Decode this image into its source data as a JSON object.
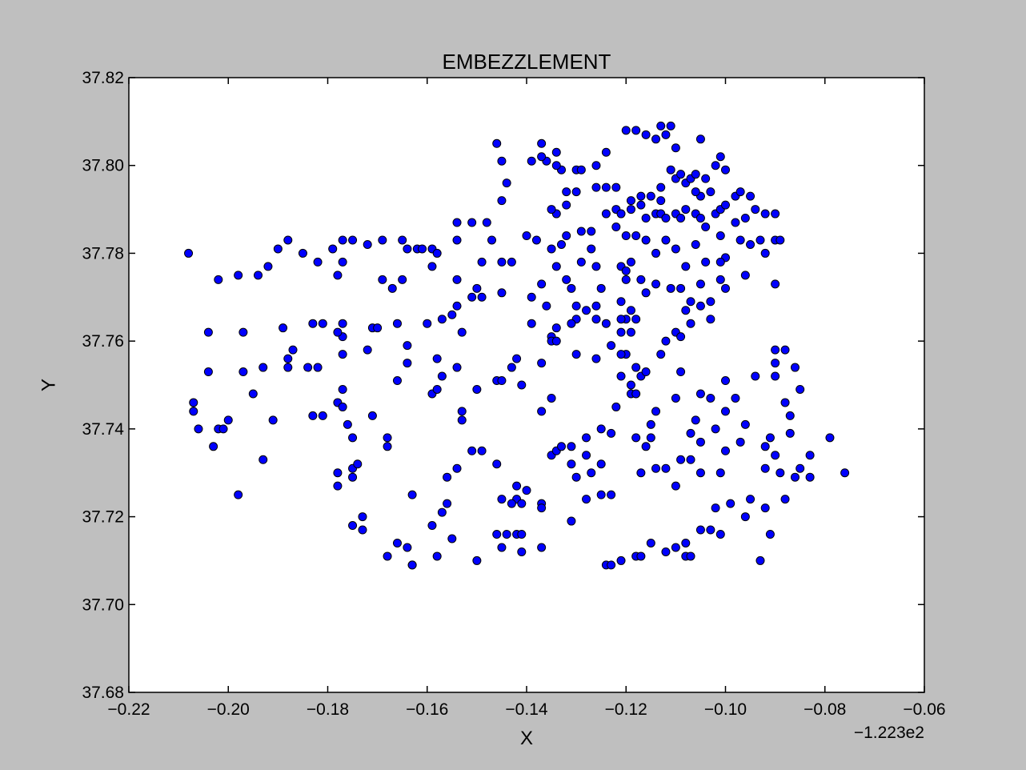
{
  "chart_data": {
    "type": "scatter",
    "title": "EMBEZZLEMENT",
    "x_label": "X",
    "y_label": "Y",
    "x_offset_label": "−1.223e2",
    "color": "#0000ff",
    "edge_color": "#000000",
    "xlim": [
      -0.22,
      -0.06
    ],
    "ylim": [
      37.68,
      37.82
    ],
    "xticks": [
      {
        "value": -0.22,
        "label": "−0.22"
      },
      {
        "value": -0.2,
        "label": "−0.20"
      },
      {
        "value": -0.18,
        "label": "−0.18"
      },
      {
        "value": -0.16,
        "label": "−0.16"
      },
      {
        "value": -0.14,
        "label": "−0.14"
      },
      {
        "value": -0.12,
        "label": "−0.12"
      },
      {
        "value": -0.1,
        "label": "−0.10"
      },
      {
        "value": -0.08,
        "label": "−0.08"
      },
      {
        "value": -0.06,
        "label": "−0.06"
      }
    ],
    "yticks": [
      37.68,
      {
        "value": 37.7,
        "label": "37.70"
      },
      37.72,
      37.74,
      37.76,
      37.78,
      {
        "value": 37.8,
        "label": "37.80"
      },
      37.82
    ],
    "x": [
      -0.208,
      -0.202,
      -0.198,
      -0.194,
      -0.192,
      -0.19,
      -0.188,
      -0.185,
      -0.182,
      -0.179,
      -0.177,
      -0.175,
      -0.177,
      -0.178,
      -0.172,
      -0.169,
      -0.165,
      -0.164,
      -0.162,
      -0.161,
      -0.159,
      -0.158,
      -0.169,
      -0.167,
      -0.165,
      -0.159,
      -0.154,
      -0.154,
      -0.151,
      -0.148,
      -0.147,
      -0.149,
      -0.154,
      -0.15,
      -0.151,
      -0.149,
      -0.154,
      -0.155,
      -0.157,
      -0.16,
      -0.153,
      -0.204,
      -0.197,
      -0.189,
      -0.183,
      -0.181,
      -0.177,
      -0.171,
      -0.17,
      -0.166,
      -0.172,
      -0.177,
      -0.178,
      -0.177,
      -0.187,
      -0.188,
      -0.188,
      -0.184,
      -0.182,
      -0.193,
      -0.197,
      -0.204,
      -0.195,
      -0.207,
      -0.207,
      -0.206,
      -0.202,
      -0.201,
      -0.2,
      -0.203,
      -0.198,
      -0.193,
      -0.191,
      -0.183,
      -0.181,
      -0.178,
      -0.177,
      -0.177,
      -0.176,
      -0.175,
      -0.171,
      -0.168,
      -0.168,
      -0.166,
      -0.164,
      -0.164,
      -0.159,
      -0.158,
      -0.157,
      -0.154,
      -0.158,
      -0.153,
      -0.153,
      -0.15,
      -0.146,
      -0.145,
      -0.141,
      -0.139,
      -0.142,
      -0.143,
      -0.137,
      -0.135,
      -0.137,
      -0.178,
      -0.178,
      -0.175,
      -0.175,
      -0.174,
      -0.175,
      -0.173,
      -0.173,
      -0.168,
      -0.166,
      -0.164,
      -0.163,
      -0.163,
      -0.163,
      -0.159,
      -0.158,
      -0.157,
      -0.156,
      -0.155,
      -0.156,
      -0.154,
      -0.151,
      -0.149,
      -0.15,
      -0.146,
      -0.145,
      -0.142,
      -0.14,
      -0.142,
      -0.143,
      -0.141,
      -0.137,
      -0.137,
      -0.146,
      -0.144,
      -0.145,
      -0.142,
      -0.141,
      -0.141,
      -0.137,
      -0.135,
      -0.134,
      -0.133,
      -0.131,
      -0.131,
      -0.13,
      -0.131,
      -0.127,
      -0.128,
      -0.128,
      -0.125,
      -0.125,
      -0.123,
      -0.128,
      -0.125,
      -0.123,
      -0.124,
      -0.123,
      -0.121,
      -0.118,
      -0.117,
      -0.115,
      -0.112,
      -0.11,
      -0.108,
      -0.107,
      -0.108,
      -0.105,
      -0.103,
      -0.101,
      -0.093,
      -0.091,
      -0.092,
      -0.096,
      -0.099,
      -0.095,
      -0.102,
      -0.088,
      -0.076,
      -0.079,
      -0.083,
      -0.083,
      -0.085,
      -0.086,
      -0.089,
      -0.092,
      -0.09,
      -0.092,
      -0.091,
      -0.087,
      -0.088,
      -0.087,
      -0.085,
      -0.086,
      -0.09,
      -0.094,
      -0.09,
      -0.09,
      -0.088,
      -0.1,
      -0.098,
      -0.096,
      -0.097,
      -0.1,
      -0.101,
      -0.105,
      -0.109,
      -0.11,
      -0.107,
      -0.105,
      -0.107,
      -0.106,
      -0.102,
      -0.1,
      -0.103,
      -0.105,
      -0.109,
      -0.11,
      -0.114,
      -0.115,
      -0.118,
      -0.115,
      -0.116,
      -0.114,
      -0.112,
      -0.117,
      -0.122,
      -0.121,
      -0.119,
      -0.118,
      -0.119,
      -0.117,
      -0.116,
      -0.118,
      -0.12,
      -0.121,
      -0.123,
      -0.121,
      -0.119,
      -0.118,
      -0.12,
      -0.121,
      -0.119,
      -0.121,
      -0.124,
      -0.126,
      -0.13,
      -0.131,
      -0.134,
      -0.135,
      -0.135,
      -0.134,
      -0.13,
      -0.126,
      -0.13,
      -0.128,
      -0.126,
      -0.131,
      -0.132,
      -0.134,
      -0.137,
      -0.136,
      -0.139,
      -0.143,
      -0.145,
      -0.145,
      -0.14,
      -0.138,
      -0.135,
      -0.133,
      -0.132,
      -0.129,
      -0.127,
      -0.127,
      -0.129,
      -0.126,
      -0.125,
      -0.121,
      -0.12,
      -0.119,
      -0.12,
      -0.117,
      -0.116,
      -0.114,
      -0.111,
      -0.109,
      -0.108,
      -0.107,
      -0.11,
      -0.112,
      -0.113,
      -0.109,
      -0.107,
      -0.105,
      -0.103,
      -0.103,
      -0.105,
      -0.101,
      -0.1,
      -0.096,
      -0.09,
      -0.092,
      -0.093,
      -0.09,
      -0.089,
      -0.095,
      -0.097,
      -0.1,
      -0.101,
      -0.104,
      -0.106,
      -0.108,
      -0.11,
      -0.112,
      -0.114,
      -0.116,
      -0.118,
      -0.12,
      -0.122,
      -0.124,
      -0.122,
      -0.121,
      -0.119,
      -0.117,
      -0.116,
      -0.114,
      -0.113,
      -0.112,
      -0.11,
      -0.109,
      -0.108,
      -0.106,
      -0.105,
      -0.104,
      -0.102,
      -0.101,
      -0.1,
      -0.098,
      -0.097,
      -0.095,
      -0.094,
      -0.092,
      -0.09,
      -0.096,
      -0.098,
      -0.101,
      -0.103,
      -0.105,
      -0.106,
      -0.108,
      -0.11,
      -0.111,
      -0.109,
      -0.107,
      -0.106,
      -0.104,
      -0.102,
      -0.101,
      -0.1,
      -0.105,
      -0.113,
      -0.115,
      -0.113,
      -0.117,
      -0.119,
      -0.122,
      -0.124,
      -0.126,
      -0.13,
      -0.129,
      -0.133,
      -0.134,
      -0.136,
      -0.137,
      -0.139,
      -0.134,
      -0.137,
      -0.146,
      -0.145,
      -0.144,
      -0.145,
      -0.132,
      -0.13,
      -0.126,
      -0.124,
      -0.134,
      -0.132,
      -0.12,
      -0.118,
      -0.116,
      -0.113,
      -0.112,
      -0.111,
      -0.11,
      -0.114,
      -0.135
    ],
    "values": [
      37.78,
      37.774,
      37.775,
      37.775,
      37.777,
      37.781,
      37.783,
      37.78,
      37.778,
      37.781,
      37.783,
      37.783,
      37.778,
      37.775,
      37.782,
      37.783,
      37.783,
      37.781,
      37.781,
      37.781,
      37.781,
      37.78,
      37.774,
      37.772,
      37.774,
      37.777,
      37.783,
      37.787,
      37.787,
      37.787,
      37.783,
      37.778,
      37.774,
      37.772,
      37.77,
      37.77,
      37.768,
      37.766,
      37.765,
      37.764,
      37.762,
      37.762,
      37.762,
      37.763,
      37.764,
      37.764,
      37.764,
      37.763,
      37.763,
      37.764,
      37.758,
      37.761,
      37.762,
      37.757,
      37.758,
      37.756,
      37.754,
      37.754,
      37.754,
      37.754,
      37.753,
      37.753,
      37.748,
      37.746,
      37.744,
      37.74,
      37.74,
      37.74,
      37.742,
      37.736,
      37.725,
      37.733,
      37.742,
      37.743,
      37.743,
      37.746,
      37.749,
      37.745,
      37.741,
      37.738,
      37.743,
      37.738,
      37.736,
      37.751,
      37.759,
      37.755,
      37.748,
      37.749,
      37.752,
      37.754,
      37.756,
      37.744,
      37.742,
      37.749,
      37.751,
      37.751,
      37.75,
      37.764,
      37.756,
      37.754,
      37.755,
      37.747,
      37.744,
      37.73,
      37.727,
      37.729,
      37.731,
      37.732,
      37.718,
      37.72,
      37.717,
      37.711,
      37.714,
      37.713,
      37.709,
      37.709,
      37.725,
      37.718,
      37.711,
      37.721,
      37.723,
      37.715,
      37.729,
      37.731,
      37.735,
      37.735,
      37.71,
      37.732,
      37.724,
      37.727,
      37.726,
      37.724,
      37.723,
      37.723,
      37.723,
      37.722,
      37.716,
      37.716,
      37.713,
      37.716,
      37.716,
      37.712,
      37.713,
      37.734,
      37.735,
      37.736,
      37.736,
      37.732,
      37.729,
      37.719,
      37.73,
      37.724,
      37.734,
      37.732,
      37.725,
      37.725,
      37.738,
      37.74,
      37.739,
      37.709,
      37.709,
      37.71,
      37.711,
      37.711,
      37.714,
      37.712,
      37.713,
      37.711,
      37.711,
      37.714,
      37.717,
      37.717,
      37.716,
      37.71,
      37.716,
      37.722,
      37.72,
      37.723,
      37.724,
      37.722,
      37.724,
      37.73,
      37.738,
      37.734,
      37.729,
      37.731,
      37.729,
      37.73,
      37.731,
      37.734,
      37.736,
      37.738,
      37.739,
      37.746,
      37.743,
      37.749,
      37.754,
      37.752,
      37.752,
      37.755,
      37.758,
      37.758,
      37.751,
      37.747,
      37.741,
      37.737,
      37.735,
      37.73,
      37.73,
      37.733,
      37.727,
      37.733,
      37.737,
      37.739,
      37.742,
      37.74,
      37.744,
      37.747,
      37.748,
      37.753,
      37.747,
      37.744,
      37.741,
      37.738,
      37.738,
      37.736,
      37.731,
      37.731,
      37.73,
      37.745,
      37.752,
      37.748,
      37.748,
      37.75,
      37.752,
      37.753,
      37.754,
      37.757,
      37.757,
      37.759,
      37.762,
      37.762,
      37.765,
      37.765,
      37.765,
      37.767,
      37.769,
      37.764,
      37.765,
      37.765,
      37.764,
      37.763,
      37.761,
      37.76,
      37.76,
      37.757,
      37.756,
      37.768,
      37.767,
      37.768,
      37.772,
      37.774,
      37.777,
      37.773,
      37.768,
      37.77,
      37.778,
      37.778,
      37.771,
      37.784,
      37.783,
      37.781,
      37.782,
      37.784,
      37.785,
      37.785,
      37.781,
      37.778,
      37.777,
      37.772,
      37.777,
      37.776,
      37.778,
      37.774,
      37.774,
      37.771,
      37.773,
      37.772,
      37.772,
      37.767,
      37.764,
      37.762,
      37.76,
      37.757,
      37.761,
      37.769,
      37.768,
      37.765,
      37.769,
      37.773,
      37.774,
      37.772,
      37.775,
      37.773,
      37.78,
      37.783,
      37.783,
      37.783,
      37.782,
      37.783,
      37.779,
      37.778,
      37.778,
      37.782,
      37.777,
      37.781,
      37.783,
      37.78,
      37.783,
      37.784,
      37.784,
      37.786,
      37.789,
      37.79,
      37.789,
      37.79,
      37.791,
      37.788,
      37.789,
      37.789,
      37.788,
      37.789,
      37.788,
      37.79,
      37.789,
      37.788,
      37.786,
      37.789,
      37.79,
      37.791,
      37.793,
      37.794,
      37.793,
      37.79,
      37.789,
      37.789,
      37.788,
      37.787,
      37.784,
      37.794,
      37.793,
      37.794,
      37.796,
      37.797,
      37.799,
      37.798,
      37.797,
      37.798,
      37.797,
      37.8,
      37.802,
      37.799,
      37.806,
      37.795,
      37.793,
      37.792,
      37.793,
      37.792,
      37.795,
      37.803,
      37.8,
      37.799,
      37.799,
      37.799,
      37.8,
      37.801,
      37.802,
      37.801,
      37.803,
      37.805,
      37.805,
      37.801,
      37.796,
      37.792,
      37.794,
      37.794,
      37.795,
      37.795,
      37.789,
      37.791,
      37.808,
      37.808,
      37.807,
      37.809,
      37.807,
      37.809,
      37.804,
      37.806,
      37.79
    ]
  }
}
